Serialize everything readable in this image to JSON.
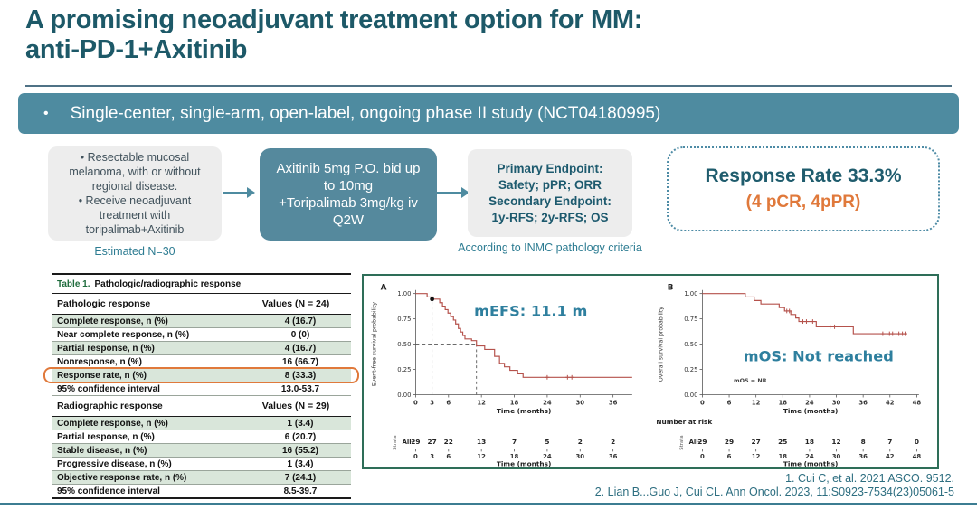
{
  "slide": {
    "title_line1": "A promising neoadjuvant treatment option for MM:",
    "title_line2": "anti-PD-1+Axitinib",
    "banner_bullet": "•",
    "banner": "Single-center, single-arm, open-label, ongoing phase II study (NCT04180995)",
    "references": [
      "1. Cui C, et al. 2021 ASCO. 9512.",
      "2. Lian B...Guo J, Cui CL. Ann Oncol. 2023, 11:S0923-7534(23)05061-5"
    ]
  },
  "flow": {
    "bullet": "•",
    "eligibility": {
      "bullets": [
        "Resectable mucosal melanoma, with or without regional disease.",
        "Receive neoadjuvant treatment with toripalimab+Axitinib"
      ],
      "caption": "Estimated N=30"
    },
    "treatment": {
      "lines": [
        "Axitinib 5mg P.O. bid up to 10mg",
        "+Toripalimab 3mg/kg iv Q2W"
      ]
    },
    "endpoints": {
      "lines": [
        "Primary Endpoint:",
        "Safety; pPR; ORR",
        "Secondary Endpoint:",
        "1y-RFS; 2y-RFS; OS"
      ],
      "caption": "According to INMC pathology criteria"
    },
    "result": {
      "line1": "Response Rate 33.3%",
      "line2": "(4 pCR, 4pPR)"
    }
  },
  "table": {
    "title_prefix": "Table 1.",
    "title": "Pathologic/radiographic response",
    "sections": [
      {
        "header": "Pathologic response",
        "values_header": "Values (N = 24)",
        "rows": [
          {
            "label": "Complete response, n (%)",
            "value": "4 (16.7)",
            "shaded": true
          },
          {
            "label": "Near complete response, n (%)",
            "value": "0 (0)",
            "shaded": false
          },
          {
            "label": "Partial response, n (%)",
            "value": "4 (16.7)",
            "shaded": true
          },
          {
            "label": "Nonresponse, n (%)",
            "value": "16 (66.7)",
            "shaded": false
          },
          {
            "label": "Response rate, n (%)",
            "value": "8 (33.3)",
            "shaded": true,
            "highlight": true
          },
          {
            "label": "95% confidence interval",
            "value": "13.0-53.7",
            "shaded": false
          }
        ]
      },
      {
        "header": "Radiographic response",
        "values_header": "Values (N = 29)",
        "rows": [
          {
            "label": "Complete response, n (%)",
            "value": "1 (3.4)",
            "shaded": true
          },
          {
            "label": "Partial response, n (%)",
            "value": "6 (20.7)",
            "shaded": false
          },
          {
            "label": "Stable disease, n (%)",
            "value": "16 (55.2)",
            "shaded": true
          },
          {
            "label": "Progressive disease, n (%)",
            "value": "1 (3.4)",
            "shaded": false
          },
          {
            "label": "Objective response rate, n (%)",
            "value": "7 (24.1)",
            "shaded": true
          },
          {
            "label": "95% confidence interval",
            "value": "8.5-39.7",
            "shaded": false
          }
        ]
      }
    ]
  },
  "chart_data": [
    {
      "type": "line",
      "subtype": "kaplan-meier",
      "panel": "A",
      "title_annotation": "mEFS: 11.1 m",
      "annotation_pos": {
        "x": 21,
        "y": 0.78
      },
      "xlabel": "Time (months)",
      "ylabel": "Event-free survival probability",
      "xlim": [
        0,
        39.5
      ],
      "ylim": [
        0,
        1.0
      ],
      "xticks": [
        0,
        3,
        6,
        12,
        18,
        24,
        30,
        36
      ],
      "yticks": [
        0,
        0.25,
        0.5,
        0.75,
        1.0
      ],
      "steps": [
        [
          0,
          1.0
        ],
        [
          2.1,
          0.966
        ],
        [
          3.2,
          0.945
        ],
        [
          4.4,
          0.91
        ],
        [
          4.9,
          0.876
        ],
        [
          5.4,
          0.841
        ],
        [
          5.9,
          0.807
        ],
        [
          6.4,
          0.772
        ],
        [
          6.9,
          0.738
        ],
        [
          7.3,
          0.7
        ],
        [
          7.8,
          0.655
        ],
        [
          8.2,
          0.62
        ],
        [
          8.6,
          0.586
        ],
        [
          9.0,
          0.552
        ],
        [
          10.2,
          0.535
        ],
        [
          11.1,
          0.483
        ],
        [
          12.6,
          0.448
        ],
        [
          14.4,
          0.379
        ],
        [
          15.3,
          0.31
        ],
        [
          16.2,
          0.276
        ],
        [
          17.2,
          0.241
        ],
        [
          18.6,
          0.207
        ],
        [
          19.6,
          0.172
        ],
        [
          39.5,
          0.172
        ]
      ],
      "censors": [
        [
          24,
          0.172
        ],
        [
          27.7,
          0.172
        ],
        [
          28.5,
          0.172
        ]
      ],
      "marker": [
        3,
        0.945
      ],
      "dashed_guides": {
        "h": {
          "y": 0.5,
          "x_end": 11.1
        },
        "v": [
          {
            "x": 3,
            "y_top": 0.945
          },
          {
            "x": 11.1,
            "y_top": 0.5
          }
        ]
      },
      "risk_table": {
        "strata_label": "Strata",
        "row_label": "All",
        "times": [
          0,
          3,
          6,
          12,
          18,
          24,
          30,
          36
        ],
        "values": [
          29,
          27,
          22,
          13,
          7,
          5,
          2,
          2
        ]
      }
    },
    {
      "type": "line",
      "subtype": "kaplan-meier",
      "panel": "B",
      "title_annotation": "mOS: Not reached",
      "annotation_pos": {
        "x": 26,
        "y": 0.33
      },
      "inner_note": "mOS = NR",
      "inner_note_pos": {
        "x": 7,
        "y": 0.12
      },
      "number_at_risk_label": "Number at risk",
      "xlabel": "Time (months)",
      "ylabel": "Overall survival probability",
      "xlim": [
        0,
        48.5
      ],
      "ylim": [
        0,
        1.0
      ],
      "xticks": [
        0,
        6,
        12,
        18,
        24,
        30,
        36,
        42,
        48
      ],
      "yticks": [
        0,
        0.25,
        0.5,
        0.75,
        1.0
      ],
      "steps": [
        [
          0,
          1.0
        ],
        [
          9.6,
          0.966
        ],
        [
          11.6,
          0.931
        ],
        [
          13.1,
          0.897
        ],
        [
          17.2,
          0.862
        ],
        [
          18.4,
          0.828
        ],
        [
          19.8,
          0.793
        ],
        [
          20.9,
          0.759
        ],
        [
          21.6,
          0.724
        ],
        [
          25.5,
          0.672
        ],
        [
          33.8,
          0.603
        ],
        [
          45.5,
          0.603
        ]
      ],
      "censors": [
        [
          18.9,
          0.828
        ],
        [
          19.5,
          0.828
        ],
        [
          22.5,
          0.724
        ],
        [
          23.3,
          0.724
        ],
        [
          24.7,
          0.724
        ],
        [
          28.6,
          0.672
        ],
        [
          29.6,
          0.672
        ],
        [
          40.4,
          0.603
        ],
        [
          41.9,
          0.603
        ],
        [
          42.6,
          0.603
        ],
        [
          44.0,
          0.603
        ],
        [
          44.8,
          0.603
        ],
        [
          45.4,
          0.603
        ]
      ],
      "risk_table": {
        "strata_label": "Strata",
        "row_label": "All",
        "times": [
          0,
          6,
          12,
          18,
          24,
          30,
          36,
          42,
          48
        ],
        "values": [
          29,
          29,
          27,
          25,
          18,
          12,
          8,
          7,
          0
        ]
      }
    }
  ],
  "colors": {
    "title_teal": "#1d5968",
    "banner_teal": "#4e8ba0",
    "treatment_teal": "#55899d",
    "caption_teal": "#2d7c92",
    "orange": "#e0793b",
    "curve_red": "#b5524c",
    "annotation_blue": "#2e7f9e",
    "figure_border": "#2e6e58",
    "table_shade": "#d9e6da",
    "table_green": "#1e6b3c"
  }
}
